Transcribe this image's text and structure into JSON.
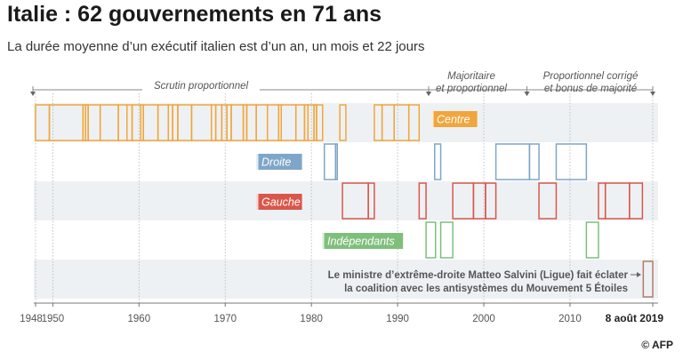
{
  "title": "Italie : 62 gouvernements en 71 ans",
  "subtitle": "La durée moyenne d’un exécutif italien est d’un an, un mois et 22 jours",
  "credit": "© AFP",
  "chart_data": {
    "type": "timeline",
    "xlim": [
      1948,
      2019.6
    ],
    "ticks": [
      {
        "year": 1948,
        "label": "1948"
      },
      {
        "year": 1950,
        "label": "1950"
      },
      {
        "year": 1960,
        "label": "1960"
      },
      {
        "year": 1970,
        "label": "1970"
      },
      {
        "year": 1980,
        "label": "1980"
      },
      {
        "year": 1990,
        "label": "1990"
      },
      {
        "year": 2000,
        "label": "2000"
      },
      {
        "year": 2010,
        "label": "2010"
      }
    ],
    "end_label": {
      "year": 2019.6,
      "label": "8 août 2019"
    },
    "periods": [
      {
        "label": "Scrutin proportionnel",
        "start": 1948,
        "end": 1993.6
      },
      {
        "label": [
          "Majoritaire",
          "et proportionnel"
        ],
        "start": 1993.6,
        "end": 2005.0
      },
      {
        "label": [
          "Proportionnel corrigé",
          "et bonus de majorité"
        ],
        "start": 2005.0,
        "end": 2019.6
      }
    ],
    "series": [
      {
        "name": "Centre",
        "color": "#f0a63c",
        "row": 0,
        "boundaries": [
          1948,
          1949.6,
          1953.5,
          1953.8,
          1954.1,
          1955.5,
          1957.6,
          1958.6,
          1959.2,
          1960.2,
          1960.5,
          1962.2,
          1963.4,
          1963.9,
          1964.5,
          1966.1,
          1968.4,
          1968.9,
          1969.6,
          1970.2,
          1970.7,
          1972.1,
          1972.5,
          1973.6,
          1974.9,
          1976.2,
          1976.5,
          1978.2,
          1979.2,
          1979.6,
          1980.3,
          1980.6,
          1981.3
        ],
        "groups": [
          [
            1983.3,
            1984.0
          ],
          [
            1987.3,
            1988.2,
            1989.6,
            1991.3,
            1992.5
          ]
        ]
      },
      {
        "name": "Droite",
        "color": "#7ea6c9",
        "row": 1,
        "boundaries": [
          1981.5,
          1982.8,
          1983.0
        ],
        "groups": [
          [
            1994.3,
            1995.0
          ],
          [
            2001.4,
            2005.3,
            2006.4
          ],
          [
            2008.4,
            2011.9
          ]
        ]
      },
      {
        "name": "Gauche",
        "color": "#d9574a",
        "row": 2,
        "boundaries": [
          1983.6,
          1986.6,
          1987.3
        ],
        "groups": [
          [
            1992.5,
            1993.3
          ],
          [
            1996.4,
            1998.8,
            2000.2,
            2001.4
          ],
          [
            2006.4,
            2008.4
          ],
          [
            2013.3,
            2014.1,
            2016.9,
            2018.4
          ]
        ]
      },
      {
        "name": "Indépendants",
        "color": "#7fbf7c",
        "row": 3,
        "boundaries": [
          1993.3,
          1994.4
        ],
        "groups": [
          [
            1995.0,
            1996.4
          ],
          [
            2011.9,
            2013.3
          ]
        ]
      },
      {
        "name": "",
        "color": "#b07c6a",
        "row": 4,
        "boundaries": [
          2018.5,
          2019.6
        ],
        "groups": []
      }
    ],
    "annotation": {
      "lines": [
        "Le ministre d’extrême-droite Matteo Salvini (Ligue) fait éclater",
        "la coalition avec les antisystèmes du Mouvement 5 Étoiles"
      ]
    }
  }
}
